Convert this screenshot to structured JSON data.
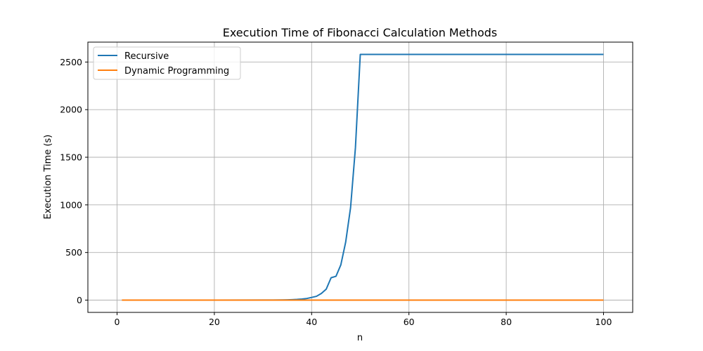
{
  "chart_data": {
    "type": "line",
    "title": "Execution Time of Fibonacci Calculation Methods",
    "xlabel": "n",
    "ylabel": "Execution Time (s)",
    "xlim": [
      -6,
      106
    ],
    "ylim": [
      -129,
      2709
    ],
    "xticks": [
      0,
      20,
      40,
      60,
      80,
      100
    ],
    "yticks": [
      0,
      500,
      1000,
      1500,
      2000,
      2500
    ],
    "grid": true,
    "legend_position": "top-left",
    "series": [
      {
        "name": "Recursive",
        "color": "#1f77b4",
        "points": [
          [
            1,
            0
          ],
          [
            10,
            0
          ],
          [
            20,
            0
          ],
          [
            30,
            0.5
          ],
          [
            32,
            1
          ],
          [
            34,
            2
          ],
          [
            35,
            3
          ],
          [
            36,
            5
          ],
          [
            37,
            7
          ],
          [
            38,
            11
          ],
          [
            39,
            17
          ],
          [
            40,
            28
          ],
          [
            41,
            40
          ],
          [
            42,
            70
          ],
          [
            43,
            115
          ],
          [
            44,
            235
          ],
          [
            45,
            250
          ],
          [
            46,
            370
          ],
          [
            47,
            610
          ],
          [
            48,
            970
          ],
          [
            49,
            1600
          ],
          [
            50,
            2580
          ],
          [
            100,
            2580
          ]
        ]
      },
      {
        "name": "Dynamic Programming",
        "color": "#ff7f0e",
        "points": [
          [
            1,
            0
          ],
          [
            100,
            0
          ]
        ]
      }
    ]
  }
}
